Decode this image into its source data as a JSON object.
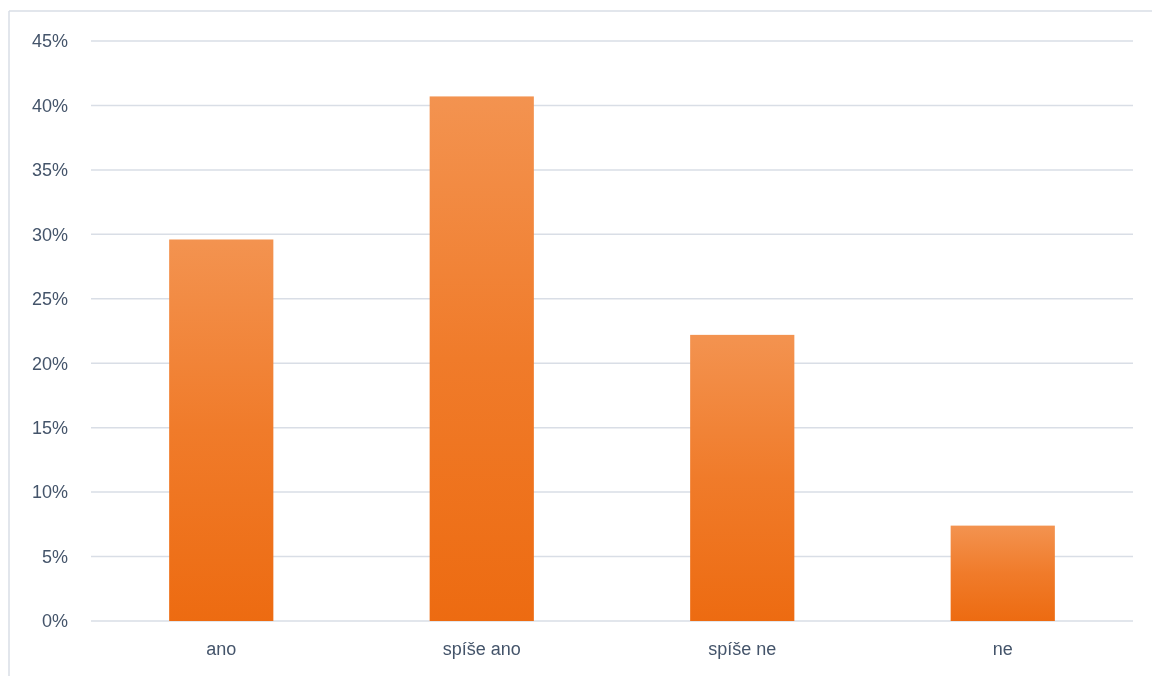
{
  "chart_data": {
    "type": "bar",
    "categories": [
      "ano",
      "spíše ano",
      "spíše ne",
      "ne"
    ],
    "values": [
      29.6,
      40.7,
      22.2,
      7.4
    ],
    "color": "#f07b2a",
    "ylim": [
      0,
      45
    ],
    "yticks": [
      {
        "value": 0,
        "label": "0%"
      },
      {
        "value": 5,
        "label": "5%"
      },
      {
        "value": 10,
        "label": "10%"
      },
      {
        "value": 15,
        "label": "15%"
      },
      {
        "value": 20,
        "label": "20%"
      },
      {
        "value": 25,
        "label": "25%"
      },
      {
        "value": 30,
        "label": "30%"
      },
      {
        "value": 35,
        "label": "35%"
      },
      {
        "value": 40,
        "label": "40%"
      },
      {
        "value": 45,
        "label": "45%"
      }
    ],
    "grid": "y"
  }
}
